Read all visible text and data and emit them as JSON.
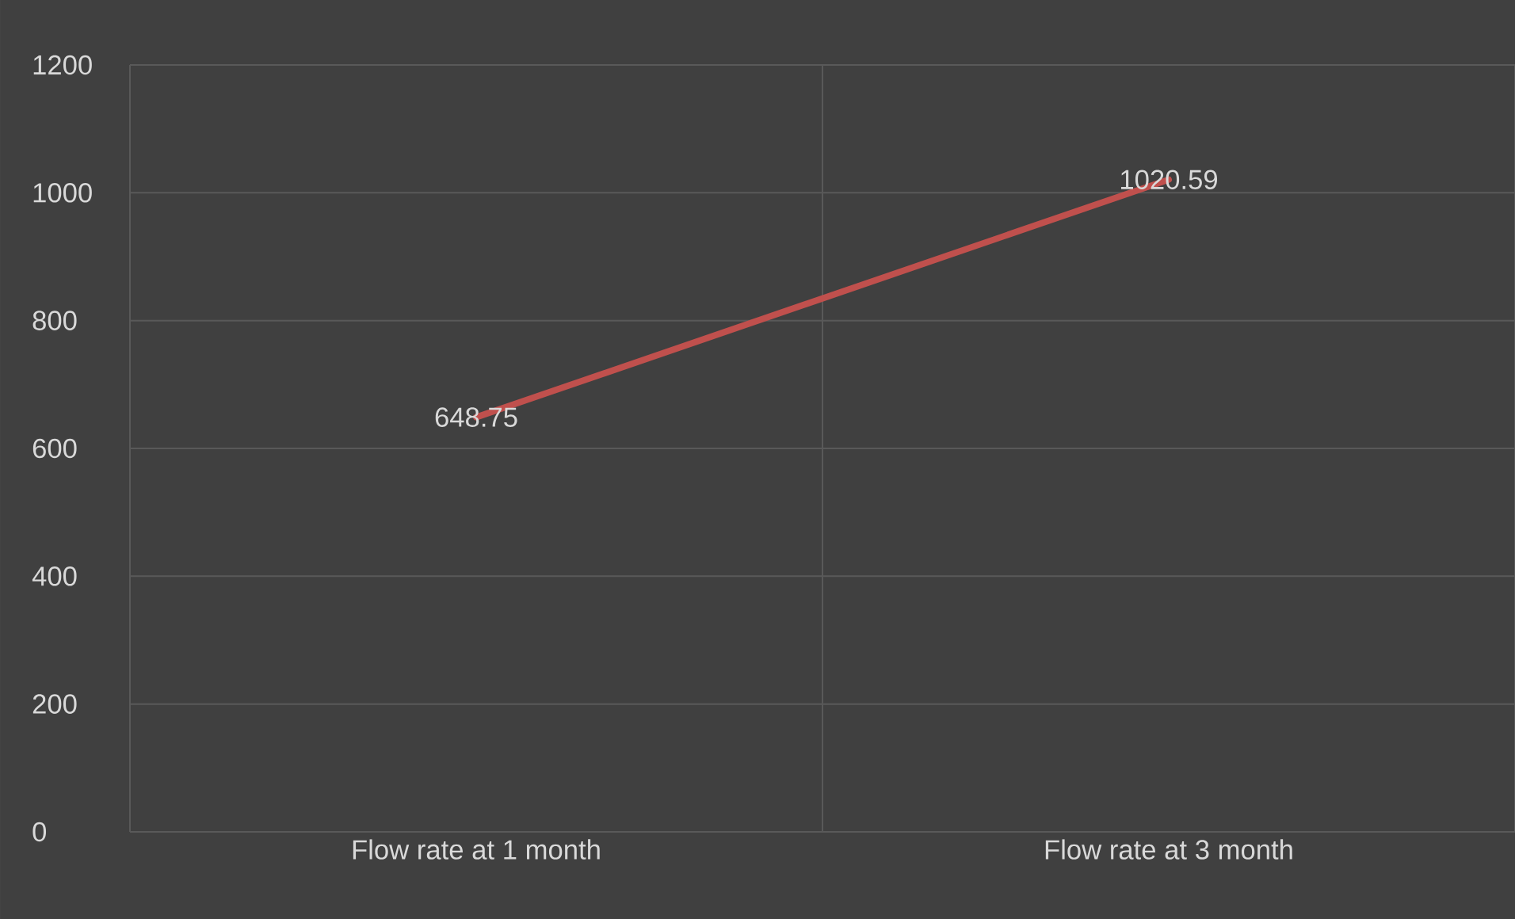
{
  "chart_data": {
    "type": "line",
    "categories": [
      "Flow rate at 1 month",
      "Flow rate at 3 month"
    ],
    "values": [
      648.75,
      1020.59
    ],
    "color": "#c0504d",
    "ylim": [
      0,
      1200
    ],
    "yticks": [
      0,
      200,
      400,
      600,
      800,
      1000,
      1200
    ],
    "grid": true,
    "data_labels": true,
    "marker": "none"
  }
}
